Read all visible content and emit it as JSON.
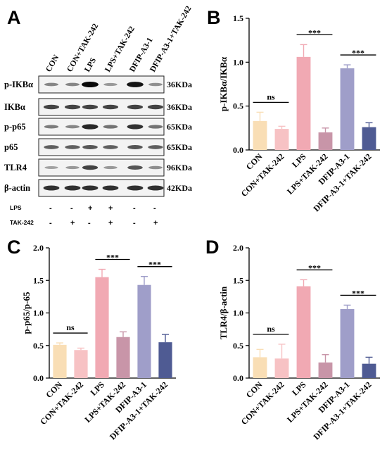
{
  "panels": {
    "A": "A",
    "B": "B",
    "C": "C",
    "D": "D"
  },
  "blot": {
    "lanes": [
      "CON",
      "CON+TAK-242",
      "LPS",
      "LPS+TAK-242",
      "DFIP-A3-1",
      "DFIP-A3-1+TAK-242"
    ],
    "rows": [
      {
        "protein": "p-IKBα",
        "kda": "36KDa",
        "intensity": [
          0.35,
          0.35,
          1.0,
          0.25,
          0.95,
          0.3
        ]
      },
      {
        "protein": "IKBα",
        "kda": "36KDa",
        "intensity": [
          0.7,
          0.7,
          0.7,
          0.7,
          0.7,
          0.7
        ]
      },
      {
        "protein": "p-p65",
        "kda": "65KDa",
        "intensity": [
          0.4,
          0.35,
          0.85,
          0.45,
          0.8,
          0.45
        ]
      },
      {
        "protein": "p65",
        "kda": "65KDa",
        "intensity": [
          0.55,
          0.55,
          0.6,
          0.55,
          0.6,
          0.55
        ]
      },
      {
        "protein": "TLR4",
        "kda": "96KDa",
        "intensity": [
          0.2,
          0.25,
          0.7,
          0.25,
          0.6,
          0.3
        ]
      },
      {
        "protein": "β-actin",
        "kda": "42KDa",
        "intensity": [
          0.8,
          0.8,
          0.8,
          0.8,
          0.8,
          0.8
        ]
      }
    ],
    "treatments": [
      {
        "name": "LPS",
        "marks": [
          "-",
          "-",
          "+",
          "+",
          "-",
          "-"
        ]
      },
      {
        "name": "TAK-242",
        "marks": [
          "-",
          "+",
          "-",
          "+",
          "-",
          "+"
        ]
      }
    ]
  },
  "chart_data": [
    {
      "panel": "B",
      "type": "bar",
      "categories": [
        "CON",
        "CON+TAK-242",
        "LPS",
        "LPS+TAK-242",
        "DFIP-A3-1",
        "DFIP-A3-1+TAK-242"
      ],
      "values": [
        0.33,
        0.24,
        1.06,
        0.2,
        0.93,
        0.26
      ],
      "errors": [
        0.1,
        0.03,
        0.14,
        0.05,
        0.04,
        0.05
      ],
      "colors": [
        "#f9deb5",
        "#f7c2c4",
        "#f1a9b3",
        "#c895a8",
        "#9f9ec9",
        "#4f5b93"
      ],
      "ylabel": "p-IKBα/IKBα",
      "ylim": [
        0,
        1.5
      ],
      "yticks": [
        0.0,
        0.5,
        1.0,
        1.5
      ],
      "tick_labels": [
        "0.0",
        "0.5",
        "1.0",
        "1.5"
      ],
      "significance": [
        {
          "from": 0,
          "to": 1,
          "label": "ns"
        },
        {
          "from": 2,
          "to": 3,
          "label": "***"
        },
        {
          "from": 4,
          "to": 5,
          "label": "***"
        }
      ]
    },
    {
      "panel": "C",
      "type": "bar",
      "categories": [
        "CON",
        "CON+TAK-242",
        "LPS",
        "LPS+TAK-242",
        "DFIP-A3-1",
        "DFIP-A3-1+TAK-242"
      ],
      "values": [
        0.51,
        0.43,
        1.55,
        0.63,
        1.43,
        0.55
      ],
      "errors": [
        0.03,
        0.03,
        0.12,
        0.08,
        0.13,
        0.12
      ],
      "colors": [
        "#f9deb5",
        "#f7c2c4",
        "#f1a9b3",
        "#c895a8",
        "#9f9ec9",
        "#4f5b93"
      ],
      "ylabel": "p-p65/p-65",
      "ylim": [
        0,
        2.0
      ],
      "yticks": [
        0.0,
        0.5,
        1.0,
        1.5,
        2.0
      ],
      "tick_labels": [
        "0.0",
        "0.5",
        "1.0",
        "1.5",
        "2.0"
      ],
      "significance": [
        {
          "from": 0,
          "to": 1,
          "label": "ns"
        },
        {
          "from": 2,
          "to": 3,
          "label": "***"
        },
        {
          "from": 4,
          "to": 5,
          "label": "***"
        }
      ]
    },
    {
      "panel": "D",
      "type": "bar",
      "categories": [
        "CON",
        "CON+TAK-242",
        "LPS",
        "LPS+TAK-242",
        "DFIP-A3-1",
        "DFIP-A3-1+TAK-242"
      ],
      "values": [
        0.32,
        0.3,
        1.41,
        0.24,
        1.06,
        0.22
      ],
      "errors": [
        0.12,
        0.22,
        0.1,
        0.12,
        0.06,
        0.1
      ],
      "colors": [
        "#f9deb5",
        "#f7c2c4",
        "#f1a9b3",
        "#c895a8",
        "#9f9ec9",
        "#4f5b93"
      ],
      "ylabel": "TLR4/β-actin",
      "ylim": [
        0,
        2.0
      ],
      "yticks": [
        0.0,
        0.5,
        1.0,
        1.5,
        2.0
      ],
      "tick_labels": [
        "0.0",
        "0.5",
        "1.0",
        "1.5",
        "2.0"
      ],
      "significance": [
        {
          "from": 0,
          "to": 1,
          "label": "ns"
        },
        {
          "from": 2,
          "to": 3,
          "label": "***"
        },
        {
          "from": 4,
          "to": 5,
          "label": "***"
        }
      ]
    }
  ]
}
